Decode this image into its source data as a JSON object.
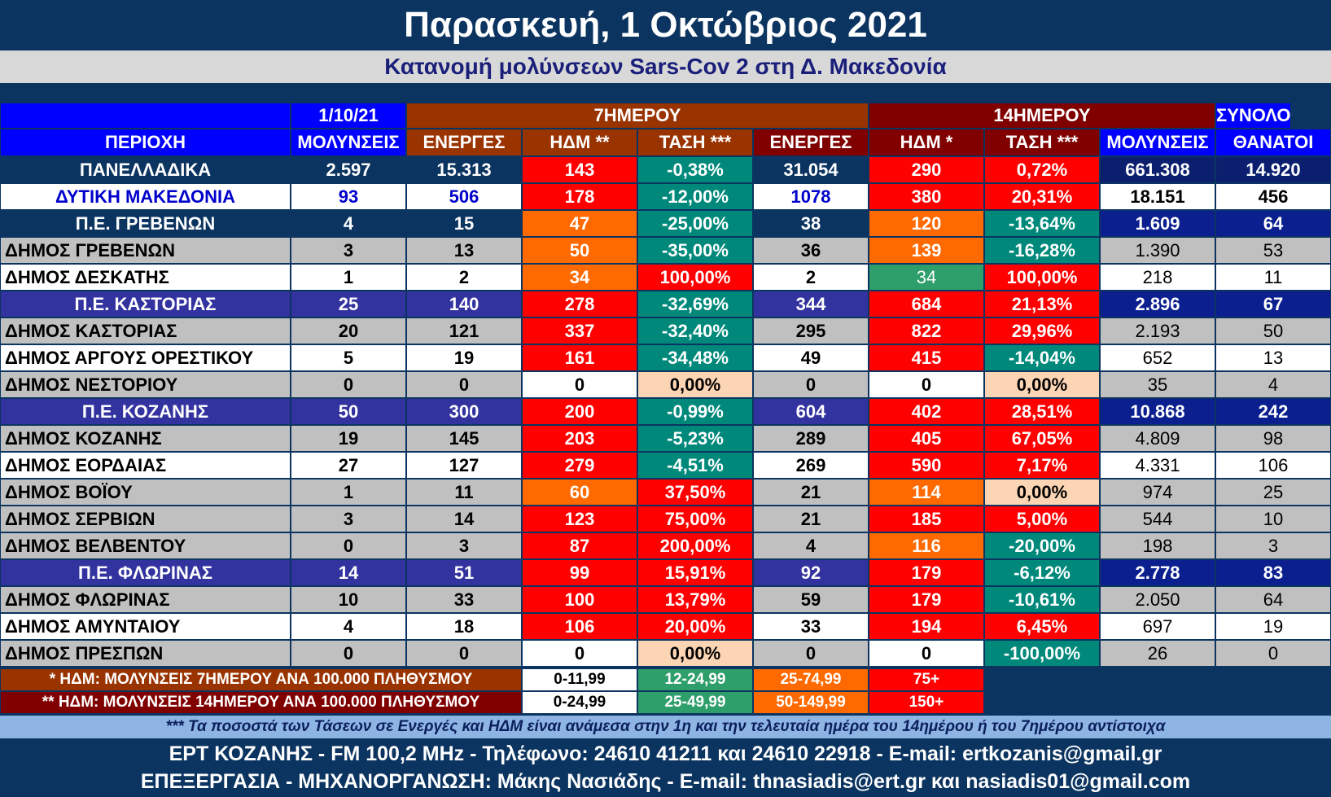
{
  "header": {
    "title": "Παρασκευή, 1 Οκτώβριος 2021",
    "subtitle": "Κατανομή μολύνσεων Sars-Cov 2 στη Δ. Μακεδονία"
  },
  "table": {
    "group_headers": {
      "date": "1/10/21",
      "seven_day": "7ΗΜΕΡΟΥ",
      "fourteen_day": "14ΗΜΕΡΟΥ",
      "total": "ΣΥΝΟΛΟ"
    },
    "columns": [
      "ΠΕΡΙΟΧΗ",
      "ΜΟΛΥΝΣΕΙΣ",
      "ΕΝΕΡΓΕΣ",
      "ΗΔΜ **",
      "ΤΑΣΗ ***",
      "ΕΝΕΡΓΕΣ",
      "ΗΔΜ *",
      "ΤΑΣΗ ***",
      "ΜΟΛΥΝΣΕΙΣ",
      "ΘΑΝΑΤΟΙ"
    ],
    "rows": [
      {
        "type": "national",
        "region": "ΠΑΝΕΛΛΑΔΙΚΑ",
        "infections": "2.597",
        "active7": "15.313",
        "hdm7": "143",
        "trend7": "-0,38%",
        "active14": "31.054",
        "hdm14": "290",
        "trend14": "0,72%",
        "total_inf": "661.308",
        "deaths": "14.920",
        "c_hdm7": "#ff0000",
        "c_trend7": "#00897b",
        "c_hdm14": "#ff0000",
        "c_trend14": "#ff0000"
      },
      {
        "type": "region",
        "region": "ΔΥΤΙΚΗ ΜΑΚΕΔΟΝΙΑ",
        "infections": "93",
        "active7": "506",
        "hdm7": "178",
        "trend7": "-12,00%",
        "active14": "1078",
        "hdm14": "380",
        "trend14": "20,31%",
        "total_inf": "18.151",
        "deaths": "456",
        "c_hdm7": "#ff0000",
        "c_trend7": "#00897b",
        "c_hdm14": "#ff0000",
        "c_trend14": "#ff0000"
      },
      {
        "type": "pe_navy",
        "region": "Π.Ε. ΓΡΕΒΕΝΩΝ",
        "infections": "4",
        "active7": "15",
        "hdm7": "47",
        "trend7": "-25,00%",
        "active14": "38",
        "hdm14": "120",
        "trend14": "-13,64%",
        "total_inf": "1.609",
        "deaths": "64",
        "c_hdm7": "#ff6a00",
        "c_trend7": "#00897b",
        "c_hdm14": "#ff6a00",
        "c_trend14": "#00897b"
      },
      {
        "type": "dimos_grey",
        "region": "ΔΗΜΟΣ ΓΡΕΒΕΝΩΝ",
        "infections": "3",
        "active7": "13",
        "hdm7": "50",
        "trend7": "-35,00%",
        "active14": "36",
        "hdm14": "139",
        "trend14": "-16,28%",
        "total_inf": "1.390",
        "deaths": "53",
        "c_hdm7": "#ff6a00",
        "c_trend7": "#00897b",
        "c_hdm14": "#ff6a00",
        "c_trend14": "#00897b"
      },
      {
        "type": "dimos_white",
        "region": "ΔΗΜΟΣ ΔΕΣΚΑΤΗΣ",
        "infections": "1",
        "active7": "2",
        "hdm7": "34",
        "trend7": "100,00%",
        "active14": "2",
        "hdm14": "34",
        "trend14": "100,00%",
        "total_inf": "218",
        "deaths": "11",
        "c_hdm7": "#ff6a00",
        "c_trend7": "#ff0000",
        "c_hdm14": "#2e9e6b",
        "c_trend14": "#ff0000"
      },
      {
        "type": "pe_purple",
        "region": "Π.Ε. ΚΑΣΤΟΡΙΑΣ",
        "infections": "25",
        "active7": "140",
        "hdm7": "278",
        "trend7": "-32,69%",
        "active14": "344",
        "hdm14": "684",
        "trend14": "21,13%",
        "total_inf": "2.896",
        "deaths": "67",
        "c_hdm7": "#ff0000",
        "c_trend7": "#00897b",
        "c_hdm14": "#ff0000",
        "c_trend14": "#ff0000"
      },
      {
        "type": "dimos_grey",
        "region": "ΔΗΜΟΣ ΚΑΣΤΟΡΙΑΣ",
        "infections": "20",
        "active7": "121",
        "hdm7": "337",
        "trend7": "-32,40%",
        "active14": "295",
        "hdm14": "822",
        "trend14": "29,96%",
        "total_inf": "2.193",
        "deaths": "50",
        "c_hdm7": "#ff0000",
        "c_trend7": "#00897b",
        "c_hdm14": "#ff0000",
        "c_trend14": "#ff0000"
      },
      {
        "type": "dimos_white",
        "region": "ΔΗΜΟΣ ΑΡΓΟΥΣ ΟΡΕΣΤΙΚΟΥ",
        "infections": "5",
        "active7": "19",
        "hdm7": "161",
        "trend7": "-34,48%",
        "active14": "49",
        "hdm14": "415",
        "trend14": "-14,04%",
        "total_inf": "652",
        "deaths": "13",
        "c_hdm7": "#ff0000",
        "c_trend7": "#00897b",
        "c_hdm14": "#ff0000",
        "c_trend14": "#00897b"
      },
      {
        "type": "dimos_grey",
        "region": "ΔΗΜΟΣ ΝΕΣΤΟΡΙΟΥ",
        "infections": "0",
        "active7": "0",
        "hdm7": "0",
        "trend7": "0,00%",
        "active14": "0",
        "hdm14": "0",
        "trend14": "0,00%",
        "total_inf": "35",
        "deaths": "4",
        "c_hdm7": "#ffffff",
        "c_trend7": "#fcd5b4",
        "c_hdm14": "#ffffff",
        "c_trend14": "#fcd5b4"
      },
      {
        "type": "pe_purple",
        "region": "Π.Ε. ΚΟΖΑΝΗΣ",
        "infections": "50",
        "active7": "300",
        "hdm7": "200",
        "trend7": "-0,99%",
        "active14": "604",
        "hdm14": "402",
        "trend14": "28,51%",
        "total_inf": "10.868",
        "deaths": "242",
        "c_hdm7": "#ff0000",
        "c_trend7": "#00897b",
        "c_hdm14": "#ff0000",
        "c_trend14": "#ff0000"
      },
      {
        "type": "dimos_grey",
        "region": "ΔΗΜΟΣ ΚΟΖΑΝΗΣ",
        "infections": "19",
        "active7": "145",
        "hdm7": "203",
        "trend7": "-5,23%",
        "active14": "289",
        "hdm14": "405",
        "trend14": "67,05%",
        "total_inf": "4.809",
        "deaths": "98",
        "c_hdm7": "#ff0000",
        "c_trend7": "#00897b",
        "c_hdm14": "#ff0000",
        "c_trend14": "#ff0000"
      },
      {
        "type": "dimos_white",
        "region": "ΔΗΜΟΣ ΕΟΡΔΑΙΑΣ",
        "infections": "27",
        "active7": "127",
        "hdm7": "279",
        "trend7": "-4,51%",
        "active14": "269",
        "hdm14": "590",
        "trend14": "7,17%",
        "total_inf": "4.331",
        "deaths": "106",
        "c_hdm7": "#ff0000",
        "c_trend7": "#00897b",
        "c_hdm14": "#ff0000",
        "c_trend14": "#ff0000"
      },
      {
        "type": "dimos_grey",
        "region": "ΔΗΜΟΣ ΒΟΪΟΥ",
        "infections": "1",
        "active7": "11",
        "hdm7": "60",
        "trend7": "37,50%",
        "active14": "21",
        "hdm14": "114",
        "trend14": "0,00%",
        "total_inf": "974",
        "deaths": "25",
        "c_hdm7": "#ff6a00",
        "c_trend7": "#ff0000",
        "c_hdm14": "#ff6a00",
        "c_trend14": "#fcd5b4"
      },
      {
        "type": "dimos_grey",
        "region": "ΔΗΜΟΣ ΣΕΡΒΙΩΝ",
        "infections": "3",
        "active7": "14",
        "hdm7": "123",
        "trend7": "75,00%",
        "active14": "21",
        "hdm14": "185",
        "trend14": "5,00%",
        "total_inf": "544",
        "deaths": "10",
        "c_hdm7": "#ff0000",
        "c_trend7": "#ff0000",
        "c_hdm14": "#ff0000",
        "c_trend14": "#ff0000"
      },
      {
        "type": "dimos_grey",
        "region": "ΔΗΜΟΣ ΒΕΛΒΕΝΤΟΥ",
        "infections": "0",
        "active7": "3",
        "hdm7": "87",
        "trend7": "200,00%",
        "active14": "4",
        "hdm14": "116",
        "trend14": "-20,00%",
        "total_inf": "198",
        "deaths": "3",
        "c_hdm7": "#ff0000",
        "c_trend7": "#ff0000",
        "c_hdm14": "#ff6a00",
        "c_trend14": "#00897b"
      },
      {
        "type": "pe_purple",
        "region": "Π.Ε. ΦΛΩΡΙΝΑΣ",
        "infections": "14",
        "active7": "51",
        "hdm7": "99",
        "trend7": "15,91%",
        "active14": "92",
        "hdm14": "179",
        "trend14": "-6,12%",
        "total_inf": "2.778",
        "deaths": "83",
        "c_hdm7": "#ff0000",
        "c_trend7": "#ff0000",
        "c_hdm14": "#ff0000",
        "c_trend14": "#00897b"
      },
      {
        "type": "dimos_grey",
        "region": "ΔΗΜΟΣ ΦΛΩΡΙΝΑΣ",
        "infections": "10",
        "active7": "33",
        "hdm7": "100",
        "trend7": "13,79%",
        "active14": "59",
        "hdm14": "179",
        "trend14": "-10,61%",
        "total_inf": "2.050",
        "deaths": "64",
        "c_hdm7": "#ff0000",
        "c_trend7": "#ff0000",
        "c_hdm14": "#ff0000",
        "c_trend14": "#00897b"
      },
      {
        "type": "dimos_white",
        "region": "ΔΗΜΟΣ ΑΜΥΝΤΑΙΟΥ",
        "infections": "4",
        "active7": "18",
        "hdm7": "106",
        "trend7": "20,00%",
        "active14": "33",
        "hdm14": "194",
        "trend14": "6,45%",
        "total_inf": "697",
        "deaths": "19",
        "c_hdm7": "#ff0000",
        "c_trend7": "#ff0000",
        "c_hdm14": "#ff0000",
        "c_trend14": "#ff0000"
      },
      {
        "type": "dimos_grey",
        "region": "ΔΗΜΟΣ ΠΡΕΣΠΩΝ",
        "infections": "0",
        "active7": "0",
        "hdm7": "0",
        "trend7": "0,00%",
        "active14": "0",
        "hdm14": "0",
        "trend14": "-100,00%",
        "total_inf": "26",
        "deaths": "0",
        "c_hdm7": "#ffffff",
        "c_trend7": "#fcd5b4",
        "c_hdm14": "#ffffff",
        "c_trend14": "#00897b"
      }
    ]
  },
  "legend": [
    {
      "label": "* ΗΔΜ: ΜΟΛΥΝΣΕΙΣ 7ΗΜΕΡΟΥ ΑΝΑ 100.000 ΠΛΗΘΥΣΜΟΥ",
      "bg": "#993300",
      "ranges": [
        "0-11,99",
        "12-24,99",
        "25-74,99",
        "75+"
      ]
    },
    {
      "label": "** ΗΔΜ: ΜΟΛΥΝΣΕΙΣ 14ΗΜΕΡΟΥ ΑΝΑ 100.000 ΠΛΗΘΥΣΜΟΥ",
      "bg": "#800000",
      "ranges": [
        "0-24,99",
        "25-49,99",
        "50-149,99",
        "150+"
      ]
    }
  ],
  "legend_colors": [
    "#ffffff",
    "#2e9e6b",
    "#ff6a00",
    "#ff0000"
  ],
  "note": "*** Τα ποσοστά των Τάσεων σε Ενεργές και ΗΔΜ είναι ανάμεσα στην 1η και την τελευταία ημέρα του 14ημέρου ή του 7ημέρου αντίστοιχα",
  "footer": {
    "line1": "ΕΡΤ ΚΟΖΑΝΗΣ - FM 100,2 MHz - Τηλέφωνο:  24610 41211 και 24610 22918 - E-mail: ertkozanis@gmail.gr",
    "line2": "ΕΠΕΞΕΡΓΑΣΙΑ  -  ΜΗΧΑΝΟΡΓΑΝΩΣΗ: Μάκης Νασιάδης  -   E-mail: thnasiadis@ert.gr και nasiadis01@gmail.com"
  }
}
